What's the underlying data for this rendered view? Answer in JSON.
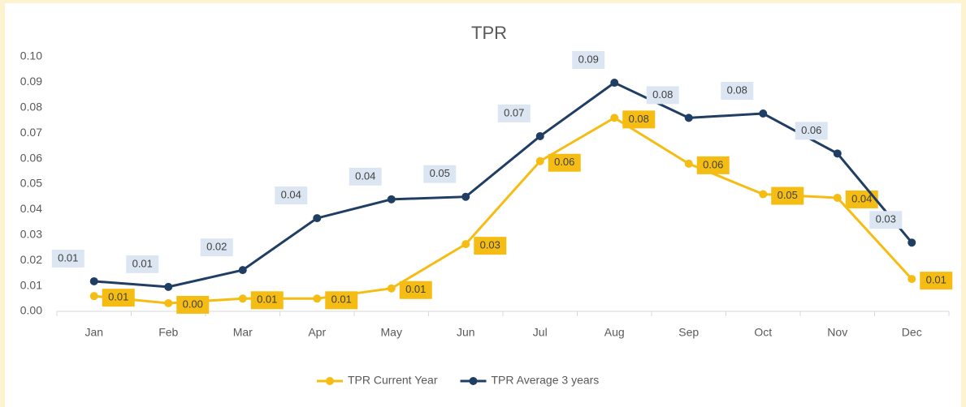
{
  "chart_data": {
    "type": "line",
    "title": "TPR",
    "categories": [
      "Jan",
      "Feb",
      "Mar",
      "Apr",
      "May",
      "Jun",
      "Jul",
      "Aug",
      "Sep",
      "Oct",
      "Nov",
      "Dec"
    ],
    "series": [
      {
        "name": "TPR Current Year",
        "color": "#f5bd13",
        "values": [
          0.006,
          0.0032,
          0.005,
          0.005,
          0.009,
          0.0264,
          0.059,
          0.076,
          0.058,
          0.046,
          0.0446,
          0.0127
        ],
        "value_labels": [
          "0.01",
          "0.00",
          "0.01",
          "0.01",
          "0.01",
          "0.03",
          "0.06",
          "0.08",
          "0.06",
          "0.05",
          "0.04",
          "0.01"
        ]
      },
      {
        "name": "TPR Average 3 years",
        "color": "#203e64",
        "values": [
          0.0118,
          0.0096,
          0.0162,
          0.0366,
          0.044,
          0.045,
          0.0688,
          0.0898,
          0.076,
          0.0777,
          0.062,
          0.027
        ],
        "value_labels": [
          "0.01",
          "0.01",
          "0.02",
          "0.04",
          "0.04",
          "0.05",
          "0.07",
          "0.09",
          "0.08",
          "0.08",
          "0.06",
          "0.03"
        ]
      }
    ],
    "ylim": [
      0,
      0.1
    ],
    "yticks": [
      {
        "value": 0,
        "label": "0.00"
      },
      0.01,
      0.02,
      0.03,
      0.04,
      0.05,
      0.06,
      0.07,
      0.08,
      0.09,
      {
        "value": 0.1,
        "label": "0.10"
      }
    ],
    "legend": "bottom"
  }
}
